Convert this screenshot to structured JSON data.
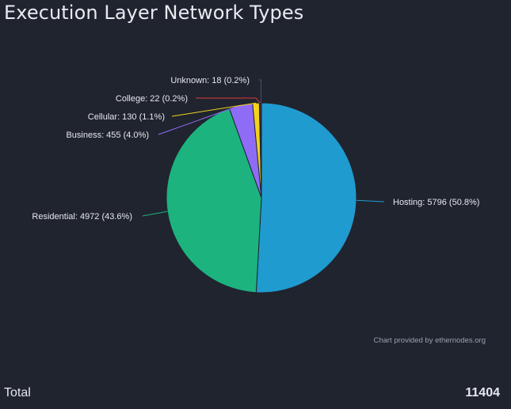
{
  "title": "Execution Layer Network Types",
  "credit": "Chart provided by ethernodes.org",
  "total": {
    "label": "Total",
    "value": "11404"
  },
  "chart_data": {
    "type": "pie",
    "start_angle_deg": 0,
    "direction": "clockwise",
    "slices": [
      {
        "name": "Hosting",
        "value": 5796,
        "percent": "50.8%",
        "label": "Hosting: 5796 (50.8%)",
        "color": "#1f9bcf"
      },
      {
        "name": "Residential",
        "value": 4972,
        "percent": "43.6%",
        "label": "Residential: 4972 (43.6%)",
        "color": "#1cb37f"
      },
      {
        "name": "Business",
        "value": 455,
        "percent": "4.0%",
        "label": "Business: 455 (4.0%)",
        "color": "#8f6cf6"
      },
      {
        "name": "Cellular",
        "value": 130,
        "percent": "1.1%",
        "label": "Cellular: 130 (1.1%)",
        "color": "#f2d21c"
      },
      {
        "name": "College",
        "value": 22,
        "percent": "0.2%",
        "label": "College: 22 (0.2%)",
        "color": "#e03a3f"
      },
      {
        "name": "Unknown",
        "value": 18,
        "percent": "0.2%",
        "label": "Unknown: 18 (0.2%)",
        "color": "#4a5370"
      }
    ]
  }
}
